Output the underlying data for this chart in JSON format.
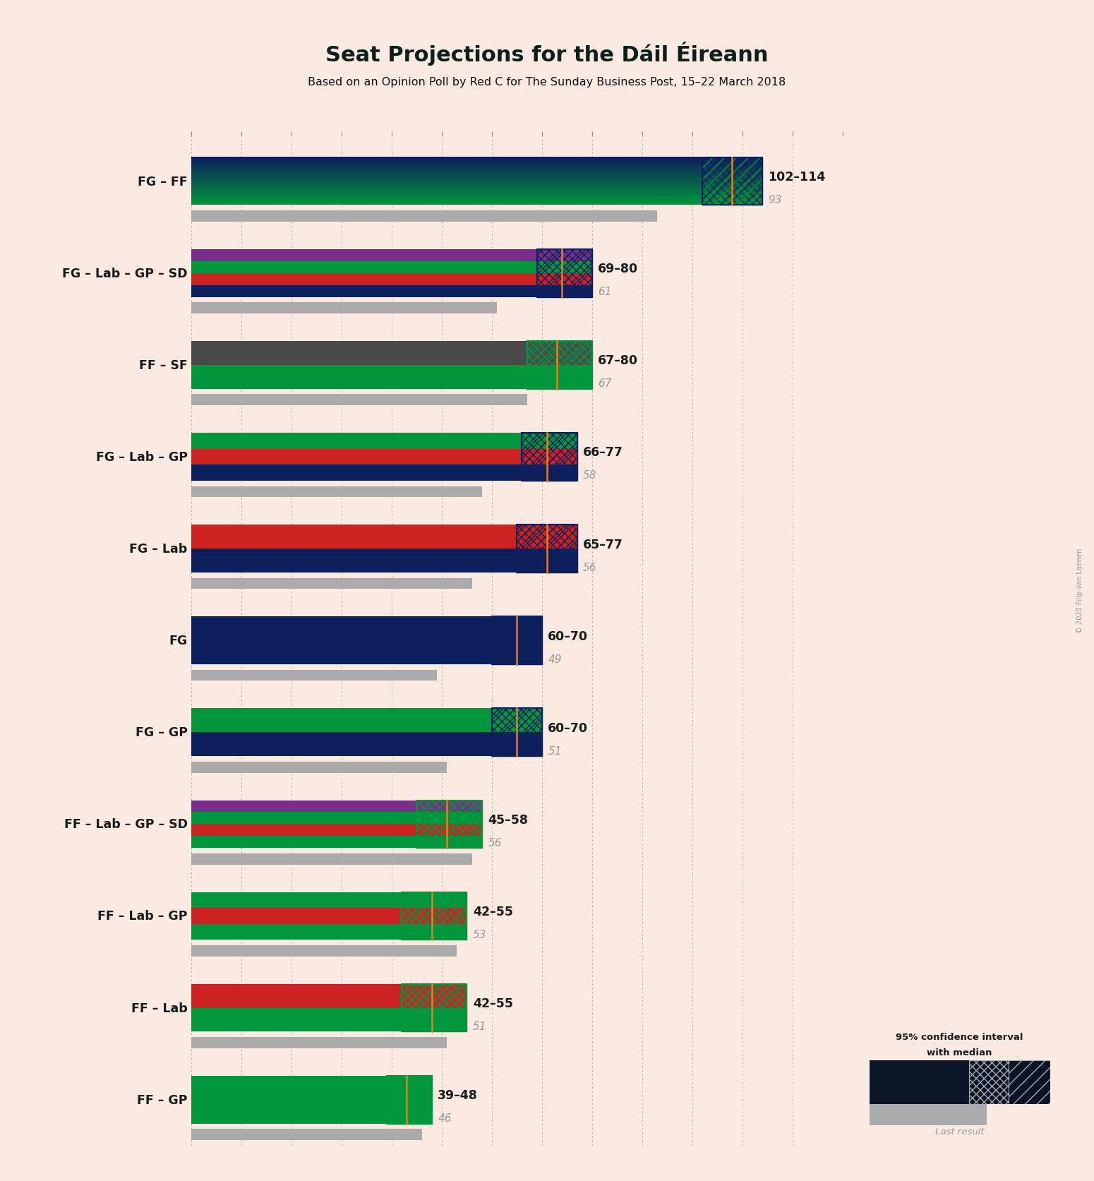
{
  "title": "Seat Projections for the Dáil Éireann",
  "subtitle": "Based on an Opinion Poll by Red C for The Sunday Business Post, 15–22 March 2018",
  "watermark": "© 2020 Filip van Laenen",
  "background_color": "#faeae2",
  "coalitions": [
    {
      "label": "FG – FF",
      "ci_low": 102,
      "ci_high": 114,
      "median": 108,
      "last_result": 93,
      "parties": [
        "FG",
        "FF"
      ]
    },
    {
      "label": "FG – Lab – GP – SD",
      "ci_low": 69,
      "ci_high": 80,
      "median": 74,
      "last_result": 61,
      "parties": [
        "FG",
        "Lab",
        "GP",
        "SD"
      ]
    },
    {
      "label": "FF – SF",
      "ci_low": 67,
      "ci_high": 80,
      "median": 73,
      "last_result": 67,
      "parties": [
        "FF",
        "SF"
      ]
    },
    {
      "label": "FG – Lab – GP",
      "ci_low": 66,
      "ci_high": 77,
      "median": 71,
      "last_result": 58,
      "parties": [
        "FG",
        "Lab",
        "GP"
      ]
    },
    {
      "label": "FG – Lab",
      "ci_low": 65,
      "ci_high": 77,
      "median": 71,
      "last_result": 56,
      "parties": [
        "FG",
        "Lab"
      ]
    },
    {
      "label": "FG",
      "ci_low": 60,
      "ci_high": 70,
      "median": 65,
      "last_result": 49,
      "parties": [
        "FG"
      ]
    },
    {
      "label": "FG – GP",
      "ci_low": 60,
      "ci_high": 70,
      "median": 65,
      "last_result": 51,
      "parties": [
        "FG",
        "GP"
      ]
    },
    {
      "label": "FF – Lab – GP – SD",
      "ci_low": 45,
      "ci_high": 58,
      "median": 51,
      "last_result": 56,
      "parties": [
        "FF",
        "Lab",
        "GP",
        "SD"
      ]
    },
    {
      "label": "FF – Lab – GP",
      "ci_low": 42,
      "ci_high": 55,
      "median": 48,
      "last_result": 53,
      "parties": [
        "FF",
        "Lab",
        "GP"
      ]
    },
    {
      "label": "FF – Lab",
      "ci_low": 42,
      "ci_high": 55,
      "median": 48,
      "last_result": 51,
      "parties": [
        "FF",
        "Lab"
      ]
    },
    {
      "label": "FF – GP",
      "ci_low": 39,
      "ci_high": 48,
      "median": 43,
      "last_result": 46,
      "parties": [
        "FF",
        "GP"
      ]
    }
  ],
  "x_min": 0,
  "x_max": 130,
  "x_ticks": [
    0,
    10,
    20,
    30,
    40,
    50,
    60,
    70,
    80,
    90,
    100,
    110,
    120,
    130
  ],
  "party_colors": {
    "FG": "#0d1f5c",
    "FF": "#00963c",
    "Lab": "#cc2222",
    "GP": "#00963c",
    "SD": "#7b2d8b",
    "SF": "#4a4a4a"
  },
  "median_color": "#e88020",
  "last_result_color": "#aaaaaa",
  "grid_color": "#888888",
  "label_color": "#1a1a1a"
}
